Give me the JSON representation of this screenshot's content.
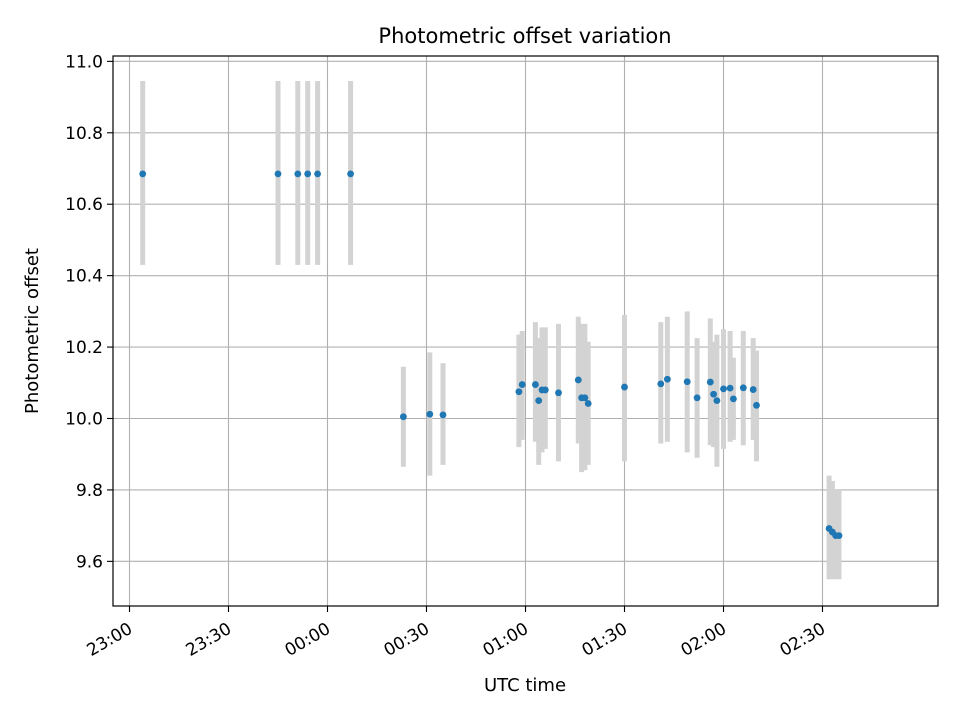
{
  "chart_data": {
    "type": "scatter",
    "title": "Photometric offset variation",
    "xlabel": "UTC time",
    "ylabel": "Photometric offset",
    "x_ticks": [
      "23:00",
      "23:30",
      "00:00",
      "00:30",
      "01:00",
      "01:30",
      "02:00",
      "02:30"
    ],
    "y_ticks": [
      "9.6",
      "9.8",
      "10.0",
      "10.2",
      "10.4",
      "10.6",
      "10.8",
      "11.0"
    ],
    "xlim": [
      "22:55",
      "03:05"
    ],
    "ylim": [
      9.475,
      11.015
    ],
    "grid": true,
    "error_bars": true,
    "points": [
      {
        "x": "23:04",
        "y": 10.685,
        "lo": 10.43,
        "hi": 10.945
      },
      {
        "x": "23:45",
        "y": 10.685,
        "lo": 10.43,
        "hi": 10.945
      },
      {
        "x": "23:51",
        "y": 10.685,
        "lo": 10.43,
        "hi": 10.945
      },
      {
        "x": "23:54",
        "y": 10.685,
        "lo": 10.43,
        "hi": 10.945
      },
      {
        "x": "23:57",
        "y": 10.685,
        "lo": 10.43,
        "hi": 10.945
      },
      {
        "x": "00:07",
        "y": 10.685,
        "lo": 10.43,
        "hi": 10.945
      },
      {
        "x": "00:23",
        "y": 10.005,
        "lo": 9.865,
        "hi": 10.145
      },
      {
        "x": "00:31",
        "y": 10.012,
        "lo": 9.84,
        "hi": 10.185
      },
      {
        "x": "00:35",
        "y": 10.01,
        "lo": 9.87,
        "hi": 10.155
      },
      {
        "x": "00:58",
        "y": 10.075,
        "lo": 9.92,
        "hi": 10.235
      },
      {
        "x": "00:59",
        "y": 10.095,
        "lo": 9.94,
        "hi": 10.245
      },
      {
        "x": "01:03",
        "y": 10.095,
        "lo": 9.935,
        "hi": 10.27
      },
      {
        "x": "01:04",
        "y": 10.05,
        "lo": 9.87,
        "hi": 10.225
      },
      {
        "x": "01:05",
        "y": 10.08,
        "lo": 9.905,
        "hi": 10.255
      },
      {
        "x": "01:06",
        "y": 10.08,
        "lo": 9.915,
        "hi": 10.255
      },
      {
        "x": "01:10",
        "y": 10.072,
        "lo": 9.88,
        "hi": 10.265
      },
      {
        "x": "01:16",
        "y": 10.108,
        "lo": 9.93,
        "hi": 10.285
      },
      {
        "x": "01:17",
        "y": 10.058,
        "lo": 9.85,
        "hi": 10.265
      },
      {
        "x": "01:18",
        "y": 10.058,
        "lo": 9.855,
        "hi": 10.265
      },
      {
        "x": "01:19",
        "y": 10.042,
        "lo": 9.87,
        "hi": 10.215
      },
      {
        "x": "01:30",
        "y": 10.088,
        "lo": 9.88,
        "hi": 10.29
      },
      {
        "x": "01:41",
        "y": 10.097,
        "lo": 9.93,
        "hi": 10.27
      },
      {
        "x": "01:43",
        "y": 10.11,
        "lo": 9.935,
        "hi": 10.285
      },
      {
        "x": "01:49",
        "y": 10.103,
        "lo": 9.905,
        "hi": 10.3
      },
      {
        "x": "01:52",
        "y": 10.058,
        "lo": 9.89,
        "hi": 10.225
      },
      {
        "x": "01:56",
        "y": 10.102,
        "lo": 9.925,
        "hi": 10.28
      },
      {
        "x": "01:57",
        "y": 10.068,
        "lo": 9.92,
        "hi": 10.215
      },
      {
        "x": "01:58",
        "y": 10.05,
        "lo": 9.865,
        "hi": 10.235
      },
      {
        "x": "02:00",
        "y": 10.083,
        "lo": 9.915,
        "hi": 10.25
      },
      {
        "x": "02:02",
        "y": 10.085,
        "lo": 9.935,
        "hi": 10.245
      },
      {
        "x": "02:03",
        "y": 10.055,
        "lo": 9.94,
        "hi": 10.17
      },
      {
        "x": "02:06",
        "y": 10.086,
        "lo": 9.925,
        "hi": 10.245
      },
      {
        "x": "02:09",
        "y": 10.081,
        "lo": 9.94,
        "hi": 10.225
      },
      {
        "x": "02:10",
        "y": 10.037,
        "lo": 9.88,
        "hi": 10.19
      },
      {
        "x": "02:32",
        "y": 9.692,
        "lo": 9.55,
        "hi": 9.84
      },
      {
        "x": "02:33",
        "y": 9.682,
        "lo": 9.55,
        "hi": 9.825
      },
      {
        "x": "02:34",
        "y": 9.672,
        "lo": 9.55,
        "hi": 9.8
      },
      {
        "x": "02:35",
        "y": 9.672,
        "lo": 9.55,
        "hi": 9.8
      }
    ],
    "colors": {
      "point": "#1f77b4",
      "errorbar": "#d3d3d3",
      "grid": "#b0b0b0",
      "axis": "#000000"
    }
  }
}
